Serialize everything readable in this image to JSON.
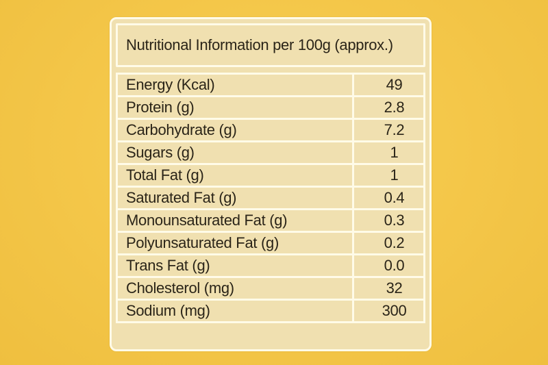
{
  "panel": {
    "title": "Nutritional Information per 100g (approx.)",
    "rows": [
      {
        "nutrient": "Energy (Kcal)",
        "value": "49"
      },
      {
        "nutrient": "Protein (g)",
        "value": "2.8"
      },
      {
        "nutrient": "Carbohydrate (g)",
        "value": "7.2"
      },
      {
        "nutrient": "Sugars (g)",
        "value": "1"
      },
      {
        "nutrient": "Total Fat (g)",
        "value": "1"
      },
      {
        "nutrient": "Saturated Fat (g)",
        "value": "0.4"
      },
      {
        "nutrient": "Monounsaturated Fat (g)",
        "value": "0.3"
      },
      {
        "nutrient": "Polyunsaturated Fat (g)",
        "value": "0.2"
      },
      {
        "nutrient": "Trans Fat (g)",
        "value": "0.0"
      },
      {
        "nutrient": "Cholesterol (mg)",
        "value": "32"
      },
      {
        "nutrient": "Sodium (mg)",
        "value": "300"
      }
    ]
  },
  "colors": {
    "background": "#f5c84a",
    "panel": "#f0e0b0",
    "border": "#fffbe8",
    "text": "#2a2418"
  }
}
